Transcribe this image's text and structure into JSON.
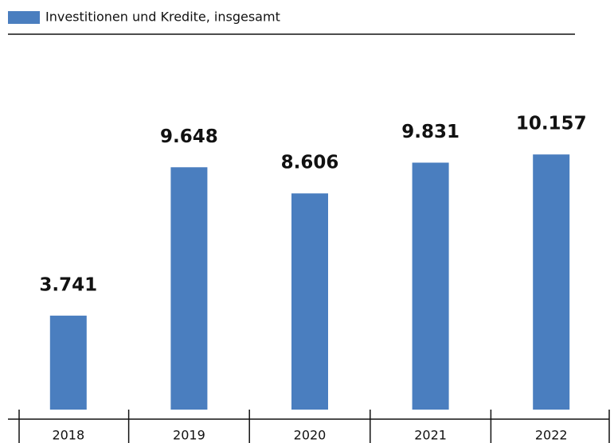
{
  "chart_data": {
    "type": "bar",
    "series": [
      {
        "name": "Investitionen und Kredite, insgesamt",
        "color": "#4a7ebf",
        "values": [
          3741,
          9648,
          8606,
          9831,
          10157
        ],
        "value_labels": [
          "3.741",
          "9.648",
          "8.606",
          "9.831",
          "10.157"
        ]
      }
    ],
    "categories": [
      "2018",
      "2019",
      "2020",
      "2021",
      "2022"
    ],
    "ylim": [
      0,
      12000
    ]
  }
}
